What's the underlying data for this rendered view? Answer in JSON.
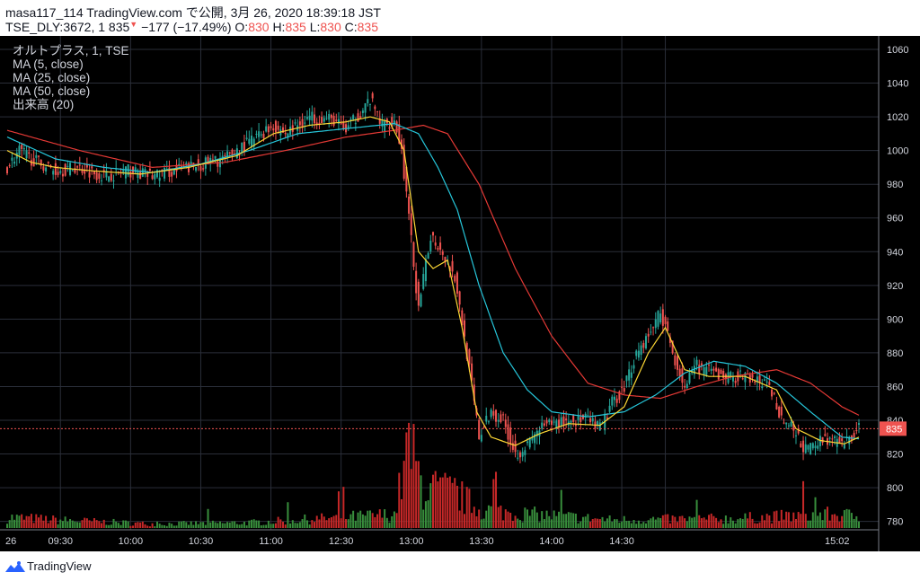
{
  "header": {
    "line1": "masa117_114 TradingView.com で公開, 3月 26, 2020 18:39:18 JST",
    "symbol_info": "TSE_DLY:3672, 1 835",
    "change_arrow": "▼",
    "change": "−177 (−17.49%)",
    "o_label": "O:",
    "o_value": "830",
    "h_label": "H:",
    "h_value": "835",
    "l_label": "L:",
    "l_value": "830",
    "c_label": "C:",
    "c_value": "835"
  },
  "legend": [
    "オルトプラス, 1, TSE",
    "MA (5, close)",
    "MA (25, close)",
    "MA (50, close)",
    "出来高 (20)"
  ],
  "footer": {
    "brand": "TradingView"
  },
  "colors": {
    "up": "#26a69a",
    "down": "#ef5350",
    "ma5": "#fdd835",
    "ma25": "#26c6da",
    "ma50": "#e53935",
    "vol_up": "#388e3c",
    "vol_down": "#c62828",
    "grid": "#2a2e39",
    "price_line": "#ef5350"
  },
  "chart_data": {
    "type": "candlestick",
    "title": "オルトプラス, 1, TSE",
    "ylim": [
      775,
      1068
    ],
    "y_ticks": [
      780,
      800,
      820,
      840,
      860,
      880,
      900,
      920,
      940,
      960,
      980,
      1000,
      1020,
      1040,
      1060
    ],
    "x_ticks": [
      "26",
      "09:30",
      "10:00",
      "10:30",
      "11:00",
      "12:30",
      "13:00",
      "13:30",
      "14:00",
      "14:30",
      "15:02"
    ],
    "last_price": 835,
    "price_path": [
      [
        0,
        990
      ],
      [
        5,
        1000
      ],
      [
        10,
        995
      ],
      [
        20,
        988
      ],
      [
        30,
        990
      ],
      [
        40,
        985
      ],
      [
        50,
        988
      ],
      [
        60,
        985
      ],
      [
        75,
        990
      ],
      [
        90,
        995
      ],
      [
        100,
        1005
      ],
      [
        110,
        1015
      ],
      [
        115,
        1010
      ],
      [
        125,
        1020
      ],
      [
        135,
        1018
      ],
      [
        140,
        1012
      ],
      [
        150,
        1030
      ],
      [
        155,
        1015
      ],
      [
        160,
        1018
      ],
      [
        163,
        1000
      ],
      [
        166,
        960
      ],
      [
        170,
        905
      ],
      [
        175,
        950
      ],
      [
        180,
        940
      ],
      [
        185,
        925
      ],
      [
        190,
        880
      ],
      [
        195,
        830
      ],
      [
        200,
        845
      ],
      [
        205,
        840
      ],
      [
        210,
        820
      ],
      [
        215,
        825
      ],
      [
        220,
        835
      ],
      [
        230,
        840
      ],
      [
        240,
        840
      ],
      [
        245,
        835
      ],
      [
        250,
        850
      ],
      [
        255,
        860
      ],
      [
        260,
        880
      ],
      [
        265,
        890
      ],
      [
        270,
        905
      ],
      [
        275,
        880
      ],
      [
        280,
        860
      ],
      [
        285,
        872
      ],
      [
        295,
        866
      ],
      [
        305,
        866
      ],
      [
        315,
        860
      ],
      [
        320,
        842
      ],
      [
        325,
        834
      ],
      [
        330,
        822
      ],
      [
        338,
        830
      ],
      [
        345,
        825
      ],
      [
        352,
        835
      ]
    ],
    "ma5": [
      [
        0,
        1000
      ],
      [
        10,
        993
      ],
      [
        20,
        990
      ],
      [
        35,
        988
      ],
      [
        55,
        986
      ],
      [
        75,
        990
      ],
      [
        95,
        997
      ],
      [
        110,
        1010
      ],
      [
        125,
        1015
      ],
      [
        140,
        1017
      ],
      [
        150,
        1020
      ],
      [
        158,
        1017
      ],
      [
        164,
        1000
      ],
      [
        170,
        940
      ],
      [
        176,
        930
      ],
      [
        182,
        935
      ],
      [
        188,
        895
      ],
      [
        194,
        845
      ],
      [
        200,
        830
      ],
      [
        210,
        825
      ],
      [
        220,
        832
      ],
      [
        232,
        838
      ],
      [
        245,
        837
      ],
      [
        255,
        848
      ],
      [
        265,
        880
      ],
      [
        272,
        895
      ],
      [
        280,
        870
      ],
      [
        290,
        866
      ],
      [
        305,
        866
      ],
      [
        318,
        858
      ],
      [
        326,
        835
      ],
      [
        336,
        828
      ],
      [
        346,
        826
      ],
      [
        352,
        830
      ]
    ],
    "ma25": [
      [
        0,
        1008
      ],
      [
        20,
        995
      ],
      [
        40,
        990
      ],
      [
        60,
        987
      ],
      [
        80,
        992
      ],
      [
        100,
        1000
      ],
      [
        120,
        1010
      ],
      [
        140,
        1013
      ],
      [
        160,
        1016
      ],
      [
        170,
        1010
      ],
      [
        178,
        990
      ],
      [
        186,
        965
      ],
      [
        195,
        920
      ],
      [
        205,
        880
      ],
      [
        215,
        858
      ],
      [
        225,
        845
      ],
      [
        240,
        842
      ],
      [
        255,
        845
      ],
      [
        268,
        855
      ],
      [
        280,
        868
      ],
      [
        292,
        875
      ],
      [
        305,
        872
      ],
      [
        318,
        862
      ],
      [
        332,
        845
      ],
      [
        345,
        830
      ],
      [
        352,
        829
      ]
    ],
    "ma50": [
      [
        0,
        1012
      ],
      [
        30,
        1000
      ],
      [
        60,
        990
      ],
      [
        90,
        993
      ],
      [
        115,
        1000
      ],
      [
        140,
        1008
      ],
      [
        160,
        1012
      ],
      [
        172,
        1015
      ],
      [
        182,
        1010
      ],
      [
        195,
        980
      ],
      [
        210,
        930
      ],
      [
        225,
        890
      ],
      [
        240,
        862
      ],
      [
        255,
        855
      ],
      [
        270,
        853
      ],
      [
        285,
        860
      ],
      [
        300,
        866
      ],
      [
        318,
        870
      ],
      [
        332,
        862
      ],
      [
        345,
        848
      ],
      [
        352,
        843
      ]
    ],
    "volume_profile": [
      [
        0,
        8
      ],
      [
        20,
        6
      ],
      [
        60,
        3
      ],
      [
        100,
        4
      ],
      [
        140,
        8
      ],
      [
        160,
        10
      ],
      [
        166,
        60
      ],
      [
        172,
        30
      ],
      [
        185,
        26
      ],
      [
        195,
        14
      ],
      [
        210,
        11
      ],
      [
        250,
        6
      ],
      [
        300,
        7
      ],
      [
        340,
        10
      ],
      [
        352,
        9
      ]
    ]
  }
}
